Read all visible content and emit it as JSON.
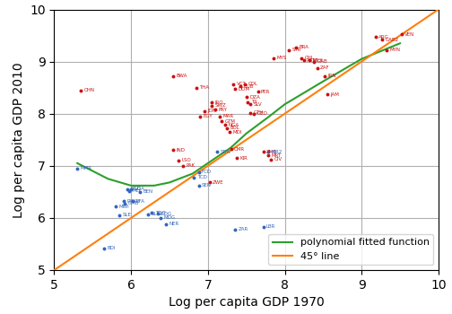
{
  "chart_data": {
    "type": "scatter",
    "xlabel": "Log per capita GDP 1970",
    "ylabel": "Log per capita GDP 2010",
    "xlim": [
      5,
      10
    ],
    "ylim": [
      5,
      10
    ],
    "xticks": [
      5,
      6,
      7,
      8,
      9,
      10
    ],
    "yticks": [
      5,
      6,
      7,
      8,
      9,
      10
    ],
    "grid": true,
    "legend": "lower right",
    "series": [
      {
        "type": "scatter",
        "color": "#cc1111",
        "x": [
          5.35,
          6.55,
          6.85,
          6.95,
          6.9,
          7.05,
          7.05,
          7.1,
          7.15,
          7.18,
          7.22,
          7.25,
          7.28,
          7.33,
          7.35,
          7.42,
          7.48,
          7.5,
          7.52,
          7.55,
          7.55,
          7.6,
          7.65,
          7.72,
          7.78,
          7.82,
          7.85,
          7.3,
          7.38,
          6.55,
          6.62,
          6.68,
          7.02,
          8.05,
          8.15,
          8.22,
          8.25,
          8.32,
          8.38,
          8.42,
          8.52,
          8.55,
          9.18,
          9.32,
          9.52,
          9.27
        ],
        "values": [
          8.45,
          8.72,
          8.5,
          8.05,
          7.95,
          8.22,
          8.15,
          8.08,
          7.95,
          7.85,
          7.78,
          7.72,
          7.65,
          8.57,
          8.47,
          8.52,
          8.57,
          8.32,
          8.22,
          8.18,
          8.02,
          8.0,
          8.42,
          7.27,
          7.2,
          7.12,
          9.07,
          7.32,
          7.15,
          7.3,
          7.1,
          7.0,
          6.68,
          9.22,
          9.27,
          9.07,
          9.02,
          9.02,
          9.0,
          8.88,
          8.72,
          8.37,
          9.47,
          9.22,
          9.52,
          9.42
        ],
        "labels": [
          "CHN",
          "BWA",
          "THA",
          "JDN",
          "EGY",
          "IRQ",
          "SWZ",
          "PRY",
          "MAR",
          "GTM",
          "NGA",
          "BOL",
          "MDI",
          "VCT",
          "DOM",
          "CUB",
          "COL",
          "DZA",
          "TII",
          "SLV",
          "GTH",
          "GEO",
          "PER",
          "ZMB",
          "MRT",
          "CIV",
          "MYS",
          "CMR",
          "KIR",
          "IND",
          "LSO",
          "PAK",
          "ZWE",
          "SYR",
          "BRA",
          "CHL",
          "ARN",
          "MEX",
          "GAB",
          "ZAF",
          "IRN",
          "JAM",
          "ARG",
          "MYN",
          "VEN",
          "GAB2"
        ]
      },
      {
        "type": "scatter",
        "color": "#3366bb",
        "x": [
          5.3,
          5.65,
          5.8,
          5.85,
          5.9,
          5.92,
          5.95,
          5.97,
          6.0,
          6.02,
          6.12,
          6.22,
          6.27,
          6.35,
          6.38,
          6.45,
          6.82,
          6.88,
          7.12,
          7.35,
          7.72,
          7.78,
          6.88
        ],
        "values": [
          6.95,
          5.42,
          6.22,
          6.05,
          6.32,
          6.28,
          6.55,
          6.52,
          6.55,
          6.32,
          6.5,
          6.07,
          6.1,
          6.08,
          6.0,
          5.88,
          6.78,
          6.62,
          7.27,
          5.78,
          5.83,
          7.27,
          6.88
        ],
        "labels": [
          "MMR",
          "BDI",
          "MWI",
          "SLE",
          "RWA",
          "GMB",
          "BGD",
          "MLI",
          "UGA",
          "BFA",
          "BEN",
          "SLE2",
          "TGO",
          "COG",
          "MDG",
          "NER",
          "TCD",
          "SEN",
          "SDN",
          "ZAR",
          "LBR",
          "KIR2",
          "FCD"
        ]
      },
      {
        "type": "line",
        "name": "polynomial fitted function",
        "x": [
          5.3,
          5.5,
          5.7,
          6.0,
          6.3,
          6.5,
          6.8,
          7.0,
          7.3,
          7.5,
          7.8,
          8.0,
          8.5,
          9.0,
          9.5
        ],
        "values": [
          7.05,
          6.9,
          6.75,
          6.62,
          6.62,
          6.68,
          6.85,
          7.05,
          7.35,
          7.62,
          7.95,
          8.18,
          8.62,
          9.05,
          9.35
        ]
      },
      {
        "type": "line",
        "name": "45° line",
        "x": [
          5,
          10
        ],
        "values": [
          5,
          10
        ]
      }
    ]
  }
}
